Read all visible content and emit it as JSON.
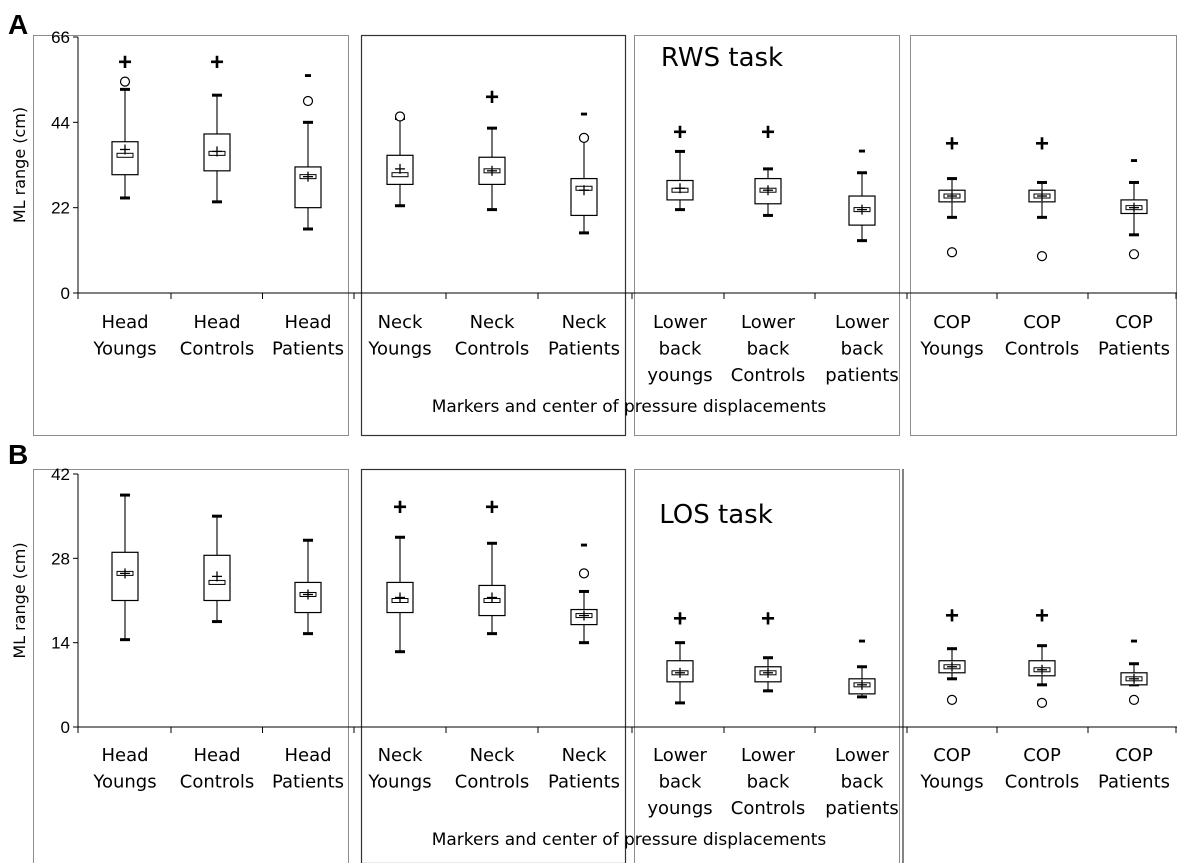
{
  "chart_data": [
    {
      "panel_label": "A",
      "type": "box",
      "annotation": "RWS task",
      "ylabel": "ML range (cm)",
      "xlabel": "Markers and center of pressure displacements",
      "ylim": [
        0,
        66
      ],
      "yticks": [
        "0",
        "22",
        "44",
        "66"
      ],
      "categories": [
        {
          "label": [
            "Head",
            "Youngs"
          ]
        },
        {
          "label": [
            "Head",
            "Controls"
          ]
        },
        {
          "label": [
            "Head",
            "Patients"
          ]
        },
        {
          "label": [
            "Neck",
            "Youngs"
          ]
        },
        {
          "label": [
            "Neck",
            "Controls"
          ]
        },
        {
          "label": [
            "Neck",
            "Patients"
          ]
        },
        {
          "label": [
            "Lower",
            "back",
            "youngs"
          ]
        },
        {
          "label": [
            "Lower",
            "back",
            "Controls"
          ]
        },
        {
          "label": [
            "Lower",
            "back",
            "patients"
          ]
        },
        {
          "label": [
            "COP",
            "Youngs"
          ]
        },
        {
          "label": [
            "COP",
            "Controls"
          ]
        },
        {
          "label": [
            "COP",
            "Patients"
          ]
        }
      ],
      "boxes": [
        {
          "min": 24.5,
          "q1": 30.5,
          "median": 35.5,
          "q3": 39.0,
          "max": 52.5,
          "mean": 37.0,
          "outliers": [
            54.5
          ],
          "marker": "+",
          "marker_y": 59.5
        },
        {
          "min": 23.5,
          "q1": 31.5,
          "median": 36.0,
          "q3": 41.0,
          "max": 51.0,
          "mean": 36.5,
          "outliers": [],
          "marker": "+",
          "marker_y": 59.5
        },
        {
          "min": 16.5,
          "q1": 22.0,
          "median": 30.0,
          "q3": 32.5,
          "max": 44.0,
          "mean": 30.0,
          "outliers": [
            49.5
          ],
          "marker": "-",
          "marker_y": 56.5
        },
        {
          "min": 22.5,
          "q1": 28.0,
          "median": 30.5,
          "q3": 35.5,
          "max": 45.0,
          "mean": 32.0,
          "outliers": [
            45.5
          ],
          "marker": "",
          "marker_y": null
        },
        {
          "min": 21.5,
          "q1": 28.0,
          "median": 31.5,
          "q3": 35.0,
          "max": 42.5,
          "mean": 31.5,
          "outliers": [],
          "marker": "+",
          "marker_y": 50.5
        },
        {
          "min": 15.5,
          "q1": 20.0,
          "median": 27.0,
          "q3": 29.5,
          "max": 40.0,
          "mean": 26.5,
          "outliers": [
            40.0
          ],
          "marker": "-",
          "marker_y": 46.5
        },
        {
          "min": 21.5,
          "q1": 24.0,
          "median": 26.5,
          "q3": 29.0,
          "max": 36.5,
          "mean": 27.0,
          "outliers": [],
          "marker": "+",
          "marker_y": 41.5
        },
        {
          "min": 20.0,
          "q1": 23.0,
          "median": 26.5,
          "q3": 29.5,
          "max": 32.0,
          "mean": 26.5,
          "outliers": [],
          "marker": "+",
          "marker_y": 41.5
        },
        {
          "min": 13.5,
          "q1": 17.5,
          "median": 21.5,
          "q3": 25.0,
          "max": 31.0,
          "mean": 21.5,
          "outliers": [],
          "marker": "-",
          "marker_y": 37.0
        },
        {
          "min": 19.5,
          "q1": 23.5,
          "median": 25.0,
          "q3": 26.5,
          "max": 29.5,
          "mean": 25.0,
          "outliers": [
            10.5
          ],
          "marker": "+",
          "marker_y": 38.5
        },
        {
          "min": 19.5,
          "q1": 23.5,
          "median": 25.0,
          "q3": 26.5,
          "max": 28.5,
          "mean": 25.0,
          "outliers": [
            9.5
          ],
          "marker": "+",
          "marker_y": 38.5
        },
        {
          "min": 15.0,
          "q1": 20.5,
          "median": 22.0,
          "q3": 24.0,
          "max": 28.5,
          "mean": 22.0,
          "outliers": [
            10.0
          ],
          "marker": "-",
          "marker_y": 34.5
        }
      ]
    },
    {
      "panel_label": "B",
      "type": "box",
      "annotation": "LOS task",
      "ylabel": "ML range (cm)",
      "xlabel": "Markers and center of pressure displacements",
      "ylim": [
        0,
        42
      ],
      "yticks": [
        "0",
        "14",
        "28",
        "42"
      ],
      "categories": [
        {
          "label": [
            "Head",
            "Youngs"
          ]
        },
        {
          "label": [
            "Head",
            "Controls"
          ]
        },
        {
          "label": [
            "Head",
            "Patients"
          ]
        },
        {
          "label": [
            "Neck",
            "Youngs"
          ]
        },
        {
          "label": [
            "Neck",
            "Controls"
          ]
        },
        {
          "label": [
            "Neck",
            "Patients"
          ]
        },
        {
          "label": [
            "Lower",
            "back",
            "youngs"
          ]
        },
        {
          "label": [
            "Lower",
            "back",
            "Controls"
          ]
        },
        {
          "label": [
            "Lower",
            "back",
            "patients"
          ]
        },
        {
          "label": [
            "COP",
            "Youngs"
          ]
        },
        {
          "label": [
            "COP",
            "Controls"
          ]
        },
        {
          "label": [
            "COP",
            "Patients"
          ]
        }
      ],
      "boxes": [
        {
          "min": 14.5,
          "q1": 21.0,
          "median": 25.5,
          "q3": 29.0,
          "max": 38.5,
          "mean": 25.5,
          "outliers": [],
          "marker": "",
          "marker_y": null
        },
        {
          "min": 17.5,
          "q1": 21.0,
          "median": 24.0,
          "q3": 28.5,
          "max": 35.0,
          "mean": 25.0,
          "outliers": [],
          "marker": "",
          "marker_y": null
        },
        {
          "min": 15.5,
          "q1": 19.0,
          "median": 22.0,
          "q3": 24.0,
          "max": 31.0,
          "mean": 22.0,
          "outliers": [],
          "marker": "",
          "marker_y": null
        },
        {
          "min": 12.5,
          "q1": 19.0,
          "median": 21.0,
          "q3": 24.0,
          "max": 31.5,
          "mean": 21.5,
          "outliers": [],
          "marker": "+",
          "marker_y": 36.5
        },
        {
          "min": 15.5,
          "q1": 18.5,
          "median": 21.0,
          "q3": 23.5,
          "max": 30.5,
          "mean": 21.5,
          "outliers": [],
          "marker": "+",
          "marker_y": 36.5
        },
        {
          "min": 14.0,
          "q1": 17.0,
          "median": 18.5,
          "q3": 19.5,
          "max": 22.5,
          "mean": 18.5,
          "outliers": [
            25.5
          ],
          "marker": "-",
          "marker_y": 30.5
        },
        {
          "min": 4.0,
          "q1": 7.5,
          "median": 9.0,
          "q3": 11.0,
          "max": 14.0,
          "mean": 9.0,
          "outliers": [],
          "marker": "+",
          "marker_y": 18.0
        },
        {
          "min": 6.0,
          "q1": 7.5,
          "median": 9.0,
          "q3": 10.0,
          "max": 11.5,
          "mean": 9.0,
          "outliers": [],
          "marker": "+",
          "marker_y": 18.0
        },
        {
          "min": 5.0,
          "q1": 5.5,
          "median": 7.0,
          "q3": 8.0,
          "max": 10.0,
          "mean": 7.0,
          "outliers": [],
          "marker": "-",
          "marker_y": 14.5
        },
        {
          "min": 8.0,
          "q1": 9.0,
          "median": 10.0,
          "q3": 11.0,
          "max": 13.0,
          "mean": 10.0,
          "outliers": [
            4.5
          ],
          "marker": "+",
          "marker_y": 18.5
        },
        {
          "min": 7.0,
          "q1": 8.5,
          "median": 9.5,
          "q3": 11.0,
          "max": 13.5,
          "mean": 9.5,
          "outliers": [
            4.0
          ],
          "marker": "+",
          "marker_y": 18.5
        },
        {
          "min": 7.0,
          "q1": 7.0,
          "median": 8.0,
          "q3": 9.0,
          "max": 10.5,
          "mean": 8.0,
          "outliers": [
            4.5
          ],
          "marker": "-",
          "marker_y": 14.5
        }
      ]
    }
  ],
  "colors": {
    "ink": "#000000",
    "frame": "#8c8c8c",
    "background": "#ffffff"
  }
}
